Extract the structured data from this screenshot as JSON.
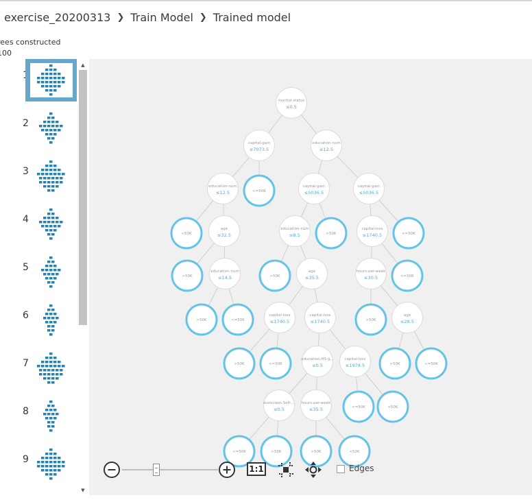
{
  "breadcrumb": {
    "experiment": "exercise_20200313",
    "module": "Train Model",
    "output": "Trained model"
  },
  "stats": {
    "trees_label": "rees constructed",
    "trees_value": "100"
  },
  "thumbnails": [
    {
      "num": "1",
      "selected": true
    },
    {
      "num": "2"
    },
    {
      "num": "3"
    },
    {
      "num": "4"
    },
    {
      "num": "5"
    },
    {
      "num": "6"
    },
    {
      "num": "7"
    },
    {
      "num": "8"
    },
    {
      "num": "9"
    }
  ],
  "toolbar": {
    "actual_size_label": "1:1",
    "edges_label": "Edges"
  },
  "colors": {
    "leaf_ring": "#64c4e8",
    "node_ring": "#dcdcdc",
    "edge": "#cfcfcf",
    "split_text": "#9a9a9a",
    "threshold_text": "#5aa7d6",
    "selected_thumb": "#68a7cc",
    "thumb_tree": "#2d7fa8"
  },
  "tree": {
    "nodes": [
      {
        "id": "n0",
        "kind": "split",
        "label": "marital-status",
        "value": "≤0.5"
      },
      {
        "id": "n1",
        "kind": "split",
        "label": "capital-gain",
        "value": "≤7073.5"
      },
      {
        "id": "n2",
        "kind": "split",
        "label": "education-num",
        "value": "≤12.5"
      },
      {
        "id": "n3",
        "kind": "split",
        "label": "education-num",
        "value": "≤12.5"
      },
      {
        "id": "n4",
        "kind": "leaf",
        "label": "<=50K"
      },
      {
        "id": "n5",
        "kind": "split",
        "label": "capital-gain",
        "value": "≤5036.5"
      },
      {
        "id": "n6",
        "kind": "split",
        "label": "capital-gain",
        "value": "≤5036.5"
      },
      {
        "id": "n7",
        "kind": "leaf",
        "label": "<50K"
      },
      {
        "id": "n8",
        "kind": "split",
        "label": "age",
        "value": "≤32.5"
      },
      {
        "id": "n9",
        "kind": "split",
        "label": "education-num",
        "value": "≤8.5"
      },
      {
        "id": "n10",
        "kind": "leaf",
        "label": ">50K"
      },
      {
        "id": "n11",
        "kind": "split",
        "label": "capital-loss",
        "value": "≤1740.5"
      },
      {
        "id": "n12",
        "kind": "leaf",
        "label": "<=50K"
      },
      {
        "id": "n13",
        "kind": "leaf",
        "label": ">50K"
      },
      {
        "id": "n14",
        "kind": "split",
        "label": "education-num",
        "value": "≤14.5"
      },
      {
        "id": "n15",
        "kind": "leaf",
        "label": ">50K"
      },
      {
        "id": "n16",
        "kind": "split",
        "label": "age",
        "value": "≤35.5"
      },
      {
        "id": "n17",
        "kind": "split",
        "label": "hours-per-week",
        "value": "≤30.5"
      },
      {
        "id": "n18",
        "kind": "leaf",
        "label": "<=50K"
      },
      {
        "id": "n19",
        "kind": "leaf",
        "label": ">50K"
      },
      {
        "id": "n20",
        "kind": "leaf",
        "label": "<=50K"
      },
      {
        "id": "n21",
        "kind": "split",
        "label": "capital-loss",
        "value": "≤1740.5"
      },
      {
        "id": "n22",
        "kind": "split",
        "label": "capital-loss",
        "value": "≤1740.5"
      },
      {
        "id": "n23",
        "kind": "leaf",
        "label": ">50K"
      },
      {
        "id": "n24",
        "kind": "split",
        "label": "age",
        "value": "≤28.5"
      },
      {
        "id": "n25",
        "kind": "leaf",
        "label": ">50K"
      },
      {
        "id": "n26",
        "kind": "leaf",
        "label": "<=50K"
      },
      {
        "id": "n27",
        "kind": "split",
        "label": "education.HS-g...",
        "value": "≤0.5"
      },
      {
        "id": "n28",
        "kind": "split",
        "label": "capital-loss",
        "value": "≤1978.5"
      },
      {
        "id": "n29",
        "kind": "leaf",
        "label": ">50K"
      },
      {
        "id": "n30",
        "kind": "leaf",
        "label": "<=50K"
      },
      {
        "id": "n31",
        "kind": "split",
        "label": "workclass.Self-...",
        "value": "≤0.5"
      },
      {
        "id": "n32",
        "kind": "split",
        "label": "hours-per-week",
        "value": "≤35.5"
      },
      {
        "id": "n33",
        "kind": "leaf",
        "label": "<=50K"
      },
      {
        "id": "n34",
        "kind": "leaf",
        "label": ">50K"
      },
      {
        "id": "n35",
        "kind": "leaf",
        "label": "<=50K"
      },
      {
        "id": "n36",
        "kind": "leaf",
        "label": ">50K"
      },
      {
        "id": "n37",
        "kind": "leaf",
        "label": ">50K"
      },
      {
        "id": "n38",
        "kind": "leaf",
        "label": "<50K"
      }
    ],
    "edges": [
      [
        "n0",
        "n1"
      ],
      [
        "n0",
        "n2"
      ],
      [
        "n1",
        "n3"
      ],
      [
        "n1",
        "n4"
      ],
      [
        "n2",
        "n5"
      ],
      [
        "n2",
        "n6"
      ],
      [
        "n3",
        "n7"
      ],
      [
        "n3",
        "n8"
      ],
      [
        "n5",
        "n9"
      ],
      [
        "n5",
        "n10"
      ],
      [
        "n6",
        "n11"
      ],
      [
        "n6",
        "n12"
      ],
      [
        "n8",
        "n13"
      ],
      [
        "n8",
        "n14"
      ],
      [
        "n9",
        "n15"
      ],
      [
        "n9",
        "n16"
      ],
      [
        "n11",
        "n17"
      ],
      [
        "n11",
        "n18"
      ],
      [
        "n14",
        "n19"
      ],
      [
        "n14",
        "n20"
      ],
      [
        "n16",
        "n21"
      ],
      [
        "n16",
        "n22"
      ],
      [
        "n17",
        "n23"
      ],
      [
        "n17",
        "n24"
      ],
      [
        "n21",
        "n25"
      ],
      [
        "n21",
        "n26"
      ],
      [
        "n22",
        "n27"
      ],
      [
        "n22",
        "n28"
      ],
      [
        "n24",
        "n29"
      ],
      [
        "n24",
        "n30"
      ],
      [
        "n27",
        "n31"
      ],
      [
        "n27",
        "n32"
      ],
      [
        "n28",
        "n33"
      ],
      [
        "n28",
        "n34"
      ],
      [
        "n31",
        "n35"
      ],
      [
        "n31",
        "n36"
      ],
      [
        "n32",
        "n37"
      ],
      [
        "n32",
        "n38"
      ]
    ]
  }
}
